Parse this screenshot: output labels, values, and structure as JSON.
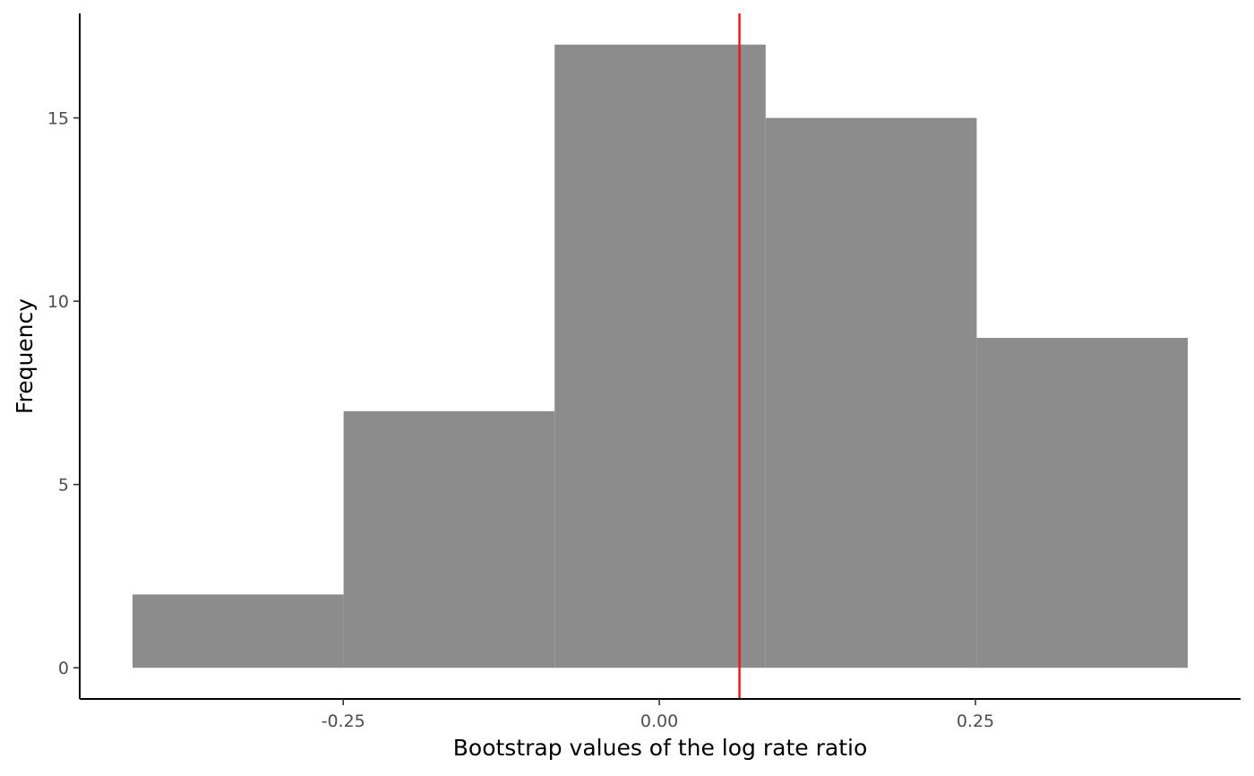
{
  "chart_data": {
    "type": "bar",
    "subtype": "histogram",
    "xlabel": "Bootstrap values of the log rate ratio",
    "ylabel": "Frequency",
    "bins": [
      {
        "x0": -0.4166,
        "x1": -0.2497,
        "count": 2
      },
      {
        "x0": -0.2497,
        "x1": -0.0828,
        "count": 7
      },
      {
        "x0": -0.0828,
        "x1": 0.0841,
        "count": 17
      },
      {
        "x0": 0.0841,
        "x1": 0.251,
        "count": 15
      },
      {
        "x0": 0.251,
        "x1": 0.4179,
        "count": 9
      }
    ],
    "xlim": [
      -0.4584,
      0.4597
    ],
    "ylim": [
      -0.85,
      17.85
    ],
    "xticks": [
      {
        "value": -0.25,
        "label": "-0.25"
      },
      {
        "value": 0.0,
        "label": "0.00"
      },
      {
        "value": 0.25,
        "label": "0.25"
      }
    ],
    "yticks": [
      {
        "value": 0,
        "label": "0"
      },
      {
        "value": 5,
        "label": "5"
      },
      {
        "value": 10,
        "label": "10"
      },
      {
        "value": 15,
        "label": "15"
      }
    ],
    "reference_line": {
      "x": 0.0634,
      "color": "#e8161b"
    },
    "bar_color": "#8c8c8c",
    "grid": false
  }
}
